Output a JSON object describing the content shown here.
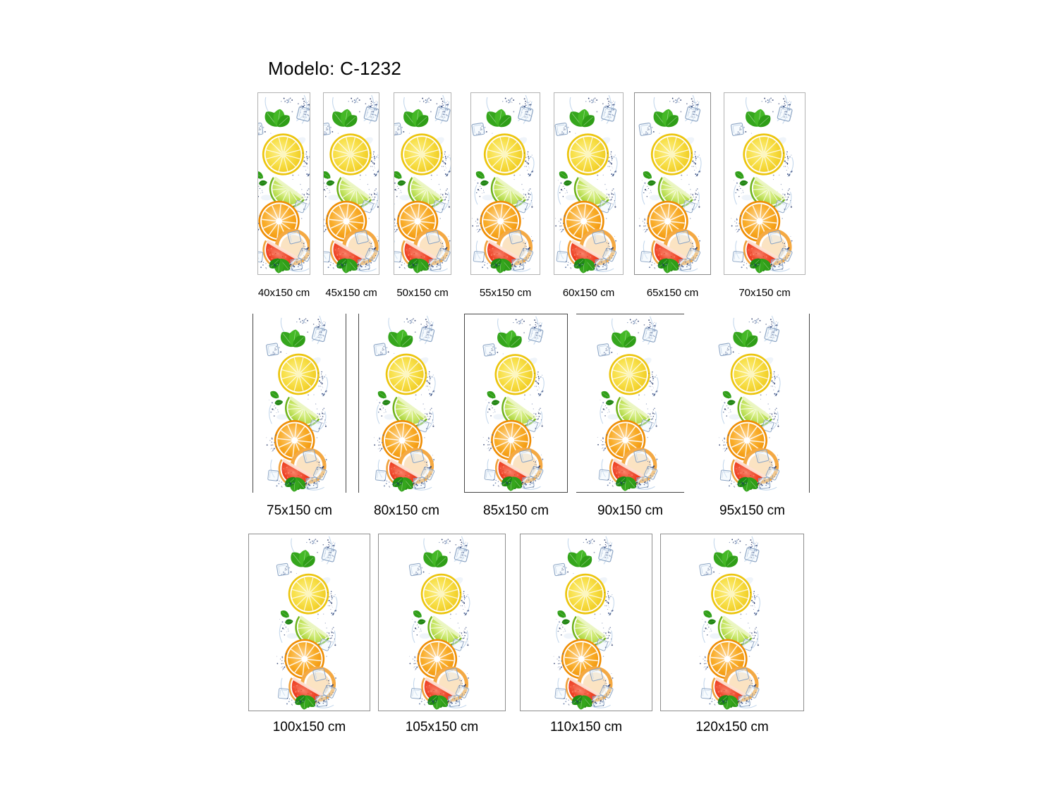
{
  "title": "Modelo: C-1232",
  "artwork": {
    "name": "citrus-fruits-water-splash",
    "elements": [
      "mint-leaves",
      "ice-cubes",
      "lemon-slice",
      "lime-slice",
      "orange-slice",
      "grapefruit-wedge",
      "water-splash-dots"
    ],
    "colors": {
      "lemon": "#f2d21c",
      "lime": "#a9d73f",
      "orange": "#f79d13",
      "grapefruit": "#ee3b21",
      "mint_green": "#35a61d",
      "ice_outline": "#8ba4c4",
      "splash_navy": "#1d2f63",
      "frame_light": "#b2b2b2",
      "frame_dark": "#454545",
      "frame_mid": "#8e8e8e",
      "text": "#000000",
      "background": "#ffffff"
    }
  },
  "rows": [
    {
      "panels": [
        {
          "label": "40x150 cm",
          "width_cm": 40,
          "height_cm": 150,
          "frame": "full"
        },
        {
          "label": "45x150 cm",
          "width_cm": 45,
          "height_cm": 150,
          "frame": "full"
        },
        {
          "label": "50x150 cm",
          "width_cm": 50,
          "height_cm": 150,
          "frame": "full"
        },
        {
          "label": "55x150 cm",
          "width_cm": 55,
          "height_cm": 150,
          "frame": "full"
        },
        {
          "label": "60x150 cm",
          "width_cm": 60,
          "height_cm": 150,
          "frame": "full"
        },
        {
          "label": "65x150 cm",
          "width_cm": 65,
          "height_cm": 150,
          "frame": "full"
        },
        {
          "label": "70x150 cm",
          "width_cm": 70,
          "height_cm": 150,
          "frame": "full"
        }
      ]
    },
    {
      "panels": [
        {
          "label": "75x150 cm",
          "width_cm": 75,
          "height_cm": 150,
          "frame": "sides"
        },
        {
          "label": "80x150 cm",
          "width_cm": 80,
          "height_cm": 150,
          "frame": "left"
        },
        {
          "label": "85x150 cm",
          "width_cm": 85,
          "height_cm": 150,
          "frame": "full"
        },
        {
          "label": "90x150 cm",
          "width_cm": 90,
          "height_cm": 150,
          "frame": "topbottom"
        },
        {
          "label": "95x150 cm",
          "width_cm": 95,
          "height_cm": 150,
          "frame": "right"
        }
      ]
    },
    {
      "panels": [
        {
          "label": "100x150 cm",
          "width_cm": 100,
          "height_cm": 150,
          "frame": "full"
        },
        {
          "label": "105x150 cm",
          "width_cm": 105,
          "height_cm": 150,
          "frame": "full"
        },
        {
          "label": "110x150 cm",
          "width_cm": 110,
          "height_cm": 150,
          "frame": "full"
        },
        {
          "label": "120x150 cm",
          "width_cm": 120,
          "height_cm": 150,
          "frame": "full"
        }
      ]
    }
  ]
}
